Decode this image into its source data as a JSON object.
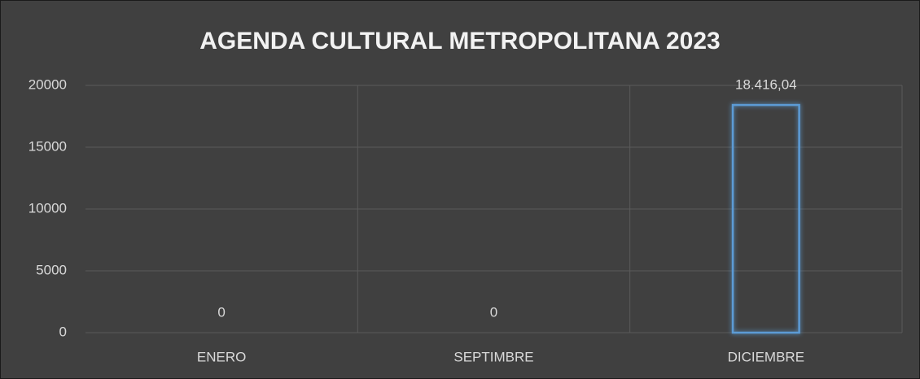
{
  "chart_data": {
    "type": "bar",
    "title": "AGENDA CULTURAL METROPOLITANA 2023",
    "categories": [
      "ENERO",
      "SEPTIMBRE",
      "DICIEMBRE"
    ],
    "values": [
      0,
      0,
      18416.04
    ],
    "value_labels": [
      "0",
      "0",
      "18.416,04"
    ],
    "color": "#5b9bd5",
    "ylim": [
      0,
      20000
    ],
    "yticks": [
      0,
      5000,
      10000,
      15000,
      20000
    ],
    "grid": true
  }
}
